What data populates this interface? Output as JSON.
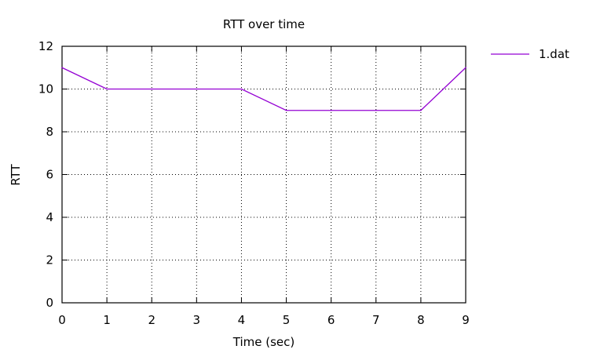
{
  "chart_data": {
    "type": "line",
    "title": "RTT over time",
    "xlabel": "Time (sec)",
    "ylabel": "RTT",
    "xlim": [
      0,
      9
    ],
    "ylim": [
      0,
      12
    ],
    "xticks": [
      0,
      1,
      2,
      3,
      4,
      5,
      6,
      7,
      8,
      9
    ],
    "yticks": [
      0,
      2,
      4,
      6,
      8,
      10,
      12
    ],
    "grid": true,
    "legend_position": "top-right outside",
    "series": [
      {
        "name": "1.dat",
        "color": "#9400d3",
        "x": [
          0,
          1,
          2,
          3,
          4,
          5,
          6,
          7,
          8,
          9
        ],
        "y": [
          11,
          10,
          10,
          10,
          10,
          9,
          9,
          9,
          9,
          11
        ]
      }
    ]
  }
}
